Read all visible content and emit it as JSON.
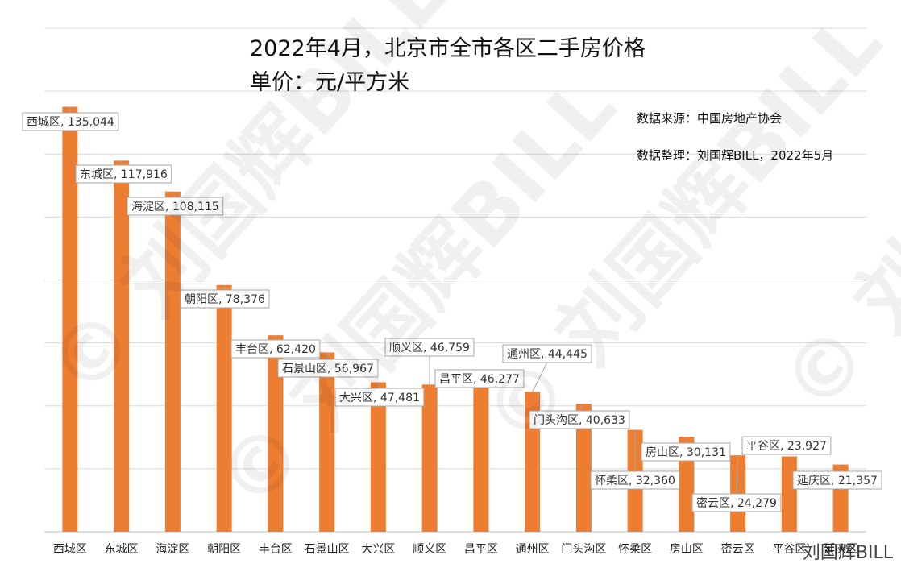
{
  "titles": {
    "line1": "2022年4月，北京市全市各区二手房价格",
    "line2": "单价：元/平方米"
  },
  "notes": {
    "source": "数据来源：中国房地产协会",
    "compiled": "数据整理：刘国辉BILL，2022年5月"
  },
  "watermark": {
    "text": "© 刘国辉BILL",
    "footer": "刘国辉BILL"
  },
  "colors": {
    "bar": "#ED7D31",
    "grid": "#D9D9D9",
    "label_border": "#A6A6A6"
  },
  "chart_data": {
    "type": "bar",
    "categories": [
      "西城区",
      "东城区",
      "海淀区",
      "朝阳区",
      "丰台区",
      "石景山区",
      "大兴区",
      "顺义区",
      "昌平区",
      "通州区",
      "门头沟区",
      "怀柔区",
      "房山区",
      "密云区",
      "平谷区",
      "延庆区"
    ],
    "values": [
      135044,
      117916,
      108115,
      78376,
      62420,
      56967,
      47481,
      46759,
      46277,
      44445,
      40633,
      32360,
      30131,
      24279,
      23927,
      21357
    ],
    "data_labels": [
      "西城区, 135,044",
      "东城区, 117,916",
      "海淀区, 108,115",
      "朝阳区, 78,376",
      "丰台区, 62,420",
      "石景山区, 56,967",
      "大兴区, 47,481",
      "顺义区, 46,759",
      "昌平区, 46,277",
      "通州区, 44,445",
      "门头沟区, 40,633",
      "怀柔区, 32,360",
      "房山区, 30,131",
      "密云区, 24,279",
      "平谷区, 23,927",
      "延庆区, 21,357"
    ],
    "title": "2022年4月，北京市全市各区二手房价格",
    "subtitle": "单价：元/平方米",
    "ylim": [
      0,
      160000
    ],
    "grid": true,
    "legend": "none"
  }
}
